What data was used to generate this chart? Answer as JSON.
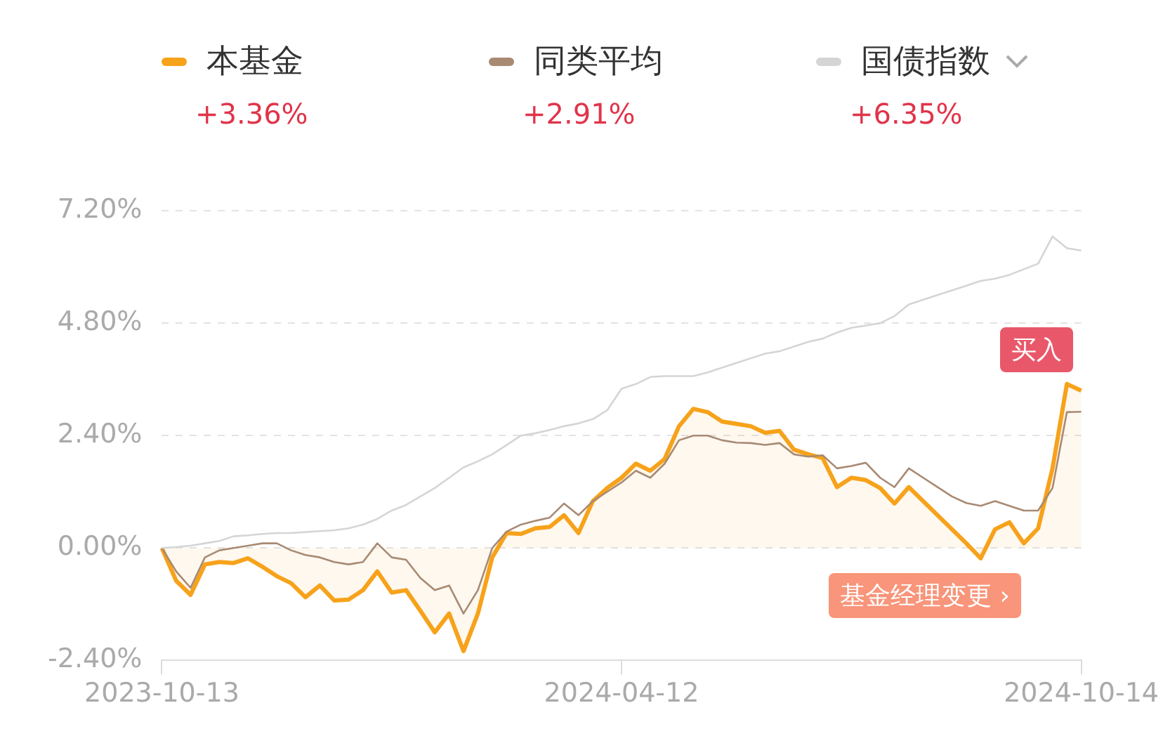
{
  "chart_data": {
    "type": "line",
    "categories": [
      "2023-10-13",
      null,
      null,
      null,
      null,
      null,
      null,
      null,
      null,
      null,
      null,
      null,
      null,
      null,
      null,
      null,
      null,
      null,
      null,
      null,
      null,
      null,
      null,
      null,
      null,
      null,
      null,
      null,
      null,
      null,
      null,
      null,
      "2024-04-12",
      null,
      null,
      null,
      null,
      null,
      null,
      null,
      null,
      null,
      null,
      null,
      null,
      null,
      null,
      null,
      null,
      null,
      null,
      null,
      null,
      null,
      null,
      null,
      null,
      null,
      null,
      null,
      null,
      null,
      null,
      null,
      "2024-10-14"
    ],
    "series": [
      {
        "name": "本基金",
        "type": "area",
        "color": "#f7a21b",
        "values": [
          0,
          -0.7,
          -1.0,
          -0.35,
          -0.3,
          -0.32,
          -0.22,
          -0.4,
          -0.6,
          -0.75,
          -1.05,
          -0.8,
          -1.12,
          -1.1,
          -0.9,
          -0.5,
          -0.95,
          -0.9,
          -1.34,
          -1.8,
          -1.4,
          -2.2,
          -1.4,
          -0.2,
          0.32,
          0.3,
          0.42,
          0.45,
          0.7,
          0.32,
          1.0,
          1.28,
          1.5,
          1.8,
          1.65,
          1.9,
          2.6,
          2.97,
          2.9,
          2.7,
          2.65,
          2.6,
          2.46,
          2.5,
          2.1,
          2.0,
          1.92,
          1.3,
          1.5,
          1.45,
          1.28,
          0.95,
          1.3,
          1.0,
          0.7,
          0.4,
          0.1,
          -0.22,
          0.4,
          0.55,
          0.1,
          0.42,
          1.7,
          3.5,
          3.36
        ]
      },
      {
        "name": "同类平均",
        "color": "#a88a73",
        "values": [
          0,
          -0.5,
          -0.85,
          -0.2,
          -0.05,
          0.0,
          0.05,
          0.1,
          0.1,
          -0.05,
          -0.15,
          -0.2,
          -0.3,
          -0.35,
          -0.3,
          0.1,
          -0.2,
          -0.25,
          -0.64,
          -0.9,
          -0.8,
          -1.4,
          -0.9,
          0.0,
          0.35,
          0.5,
          0.58,
          0.65,
          0.95,
          0.7,
          1.0,
          1.2,
          1.4,
          1.65,
          1.5,
          1.8,
          2.3,
          2.4,
          2.4,
          2.3,
          2.25,
          2.24,
          2.2,
          2.24,
          2.0,
          1.95,
          1.98,
          1.7,
          1.75,
          1.82,
          1.5,
          1.3,
          1.7,
          1.5,
          1.3,
          1.1,
          0.96,
          0.9,
          1.0,
          0.9,
          0.8,
          0.8,
          1.28,
          2.9,
          2.91
        ]
      },
      {
        "name": "国债指数",
        "color": "#d5d5d5",
        "values": [
          0,
          0.02,
          0.05,
          0.1,
          0.15,
          0.25,
          0.27,
          0.3,
          0.32,
          0.32,
          0.34,
          0.36,
          0.38,
          0.42,
          0.5,
          0.62,
          0.8,
          0.92,
          1.1,
          1.28,
          1.5,
          1.72,
          1.85,
          2.0,
          2.2,
          2.4,
          2.45,
          2.52,
          2.6,
          2.66,
          2.75,
          2.94,
          3.4,
          3.5,
          3.65,
          3.67,
          3.67,
          3.67,
          3.75,
          3.85,
          3.95,
          4.05,
          4.15,
          4.2,
          4.3,
          4.4,
          4.47,
          4.6,
          4.7,
          4.75,
          4.8,
          4.95,
          5.2,
          5.3,
          5.4,
          5.5,
          5.6,
          5.7,
          5.75,
          5.83,
          5.95,
          6.07,
          6.65,
          6.4,
          6.35
        ]
      }
    ],
    "ylim": [
      -2.4,
      7.2
    ],
    "yticks": [
      {
        "value": -2.4,
        "label": "-2.40%"
      },
      {
        "value": 0,
        "label": "0.00%"
      },
      {
        "value": 2.4,
        "label": "2.40%"
      },
      {
        "value": 4.8,
        "label": "4.80%"
      },
      {
        "value": 7.2,
        "label": "7.20%"
      }
    ],
    "grid": "y",
    "legend": "top",
    "marker": "none",
    "line_style": "solid",
    "annotations": [
      "+3.36%",
      "+2.91%",
      "+6.35%",
      "买入",
      "基金经理变更 ›"
    ]
  }
}
